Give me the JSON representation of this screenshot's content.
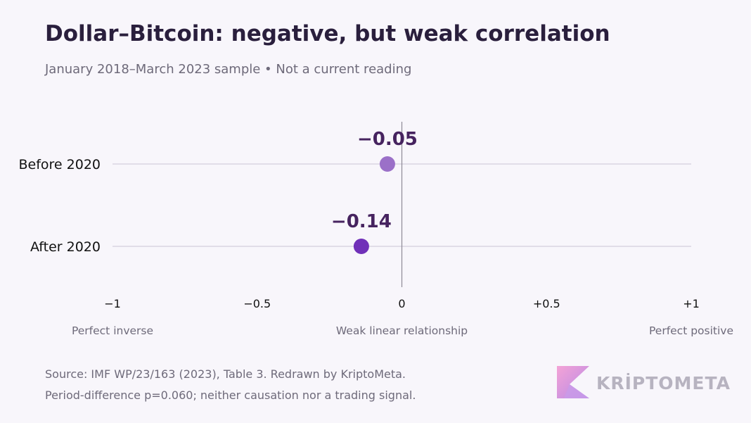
{
  "header": {
    "title": "Dollar–Bitcoin: negative, but weak correlation",
    "subtitle": "January 2018–March 2023 sample • Not a current reading"
  },
  "chart_data": {
    "type": "scatter",
    "orientation": "horizontal dot plot",
    "categories": [
      "Before 2020",
      "After 2020"
    ],
    "values": [
      -0.05,
      -0.14
    ],
    "value_labels": [
      "−0.05",
      "−0.14"
    ],
    "xlim": [
      -1,
      1
    ],
    "x_ticks": [
      -1,
      -0.5,
      0,
      0.5,
      1
    ],
    "x_tick_labels": [
      "−1",
      "−0.5",
      "0",
      "+0.5",
      "+1"
    ],
    "scale_annotations": [
      {
        "x": -1,
        "text": "Perfect inverse"
      },
      {
        "x": 0,
        "text": "Weak linear relationship"
      },
      {
        "x": 1,
        "text": "Perfect positive"
      }
    ],
    "point_colors": [
      "#9b70c8",
      "#7030b8"
    ],
    "value_label_color": "#46235f",
    "reference_line_at": 0,
    "grid": false
  },
  "footer": {
    "source": "Source: IMF WP/23/163 (2023), Table 3. Redrawn by KriptoMeta.",
    "note": "Period-difference p=0.060; neither causation nor a trading signal."
  },
  "brand": {
    "logo_text": "KRİPTOMETA"
  }
}
